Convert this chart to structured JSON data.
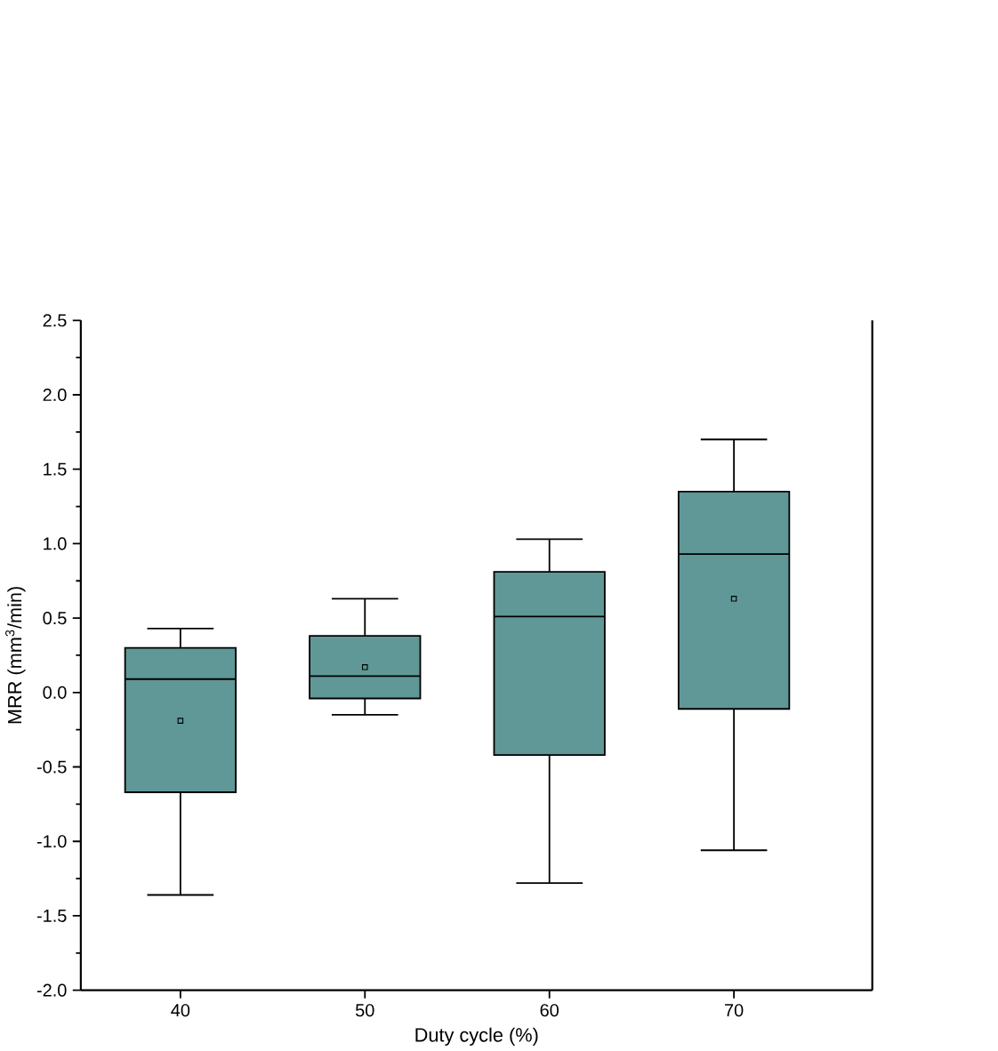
{
  "chart_data": {
    "type": "box",
    "xlabel": "Duty cycle (%)",
    "ylabel": "MRR (mm$^{3}$/min)",
    "categories": [
      "40",
      "50",
      "60",
      "70"
    ],
    "color": "#5f9896",
    "boxes": [
      {
        "low": -1.36,
        "q1": -0.67,
        "median": 0.09,
        "q3": 0.3,
        "high": 0.43,
        "mean": -0.19
      },
      {
        "low": -0.15,
        "q1": -0.04,
        "median": 0.11,
        "q3": 0.38,
        "high": 0.63,
        "mean": 0.17
      },
      {
        "low": -1.28,
        "q1": -0.42,
        "median": 0.51,
        "q3": 0.81,
        "high": 1.03
      },
      {
        "low": -1.06,
        "q1": -0.11,
        "median": 0.93,
        "q3": 1.35,
        "high": 1.7,
        "mean": 0.63
      }
    ],
    "ylim": [
      -2.0,
      2.5
    ],
    "yticks": [
      {
        "value": -2.0,
        "label": "-2.0"
      },
      {
        "value": -1.5,
        "label": "-1.5"
      },
      {
        "value": -1.0,
        "label": "-1.0"
      },
      {
        "value": -0.5,
        "label": "-0.5"
      },
      {
        "value": 0.0,
        "label": "0.0"
      },
      {
        "value": 0.5,
        "label": "0.5"
      },
      {
        "value": 1.0,
        "label": "1.0"
      },
      {
        "value": 1.5,
        "label": "1.5"
      },
      {
        "value": 2.0,
        "label": "2.0"
      },
      {
        "value": 2.5,
        "label": "2.5"
      }
    ]
  }
}
